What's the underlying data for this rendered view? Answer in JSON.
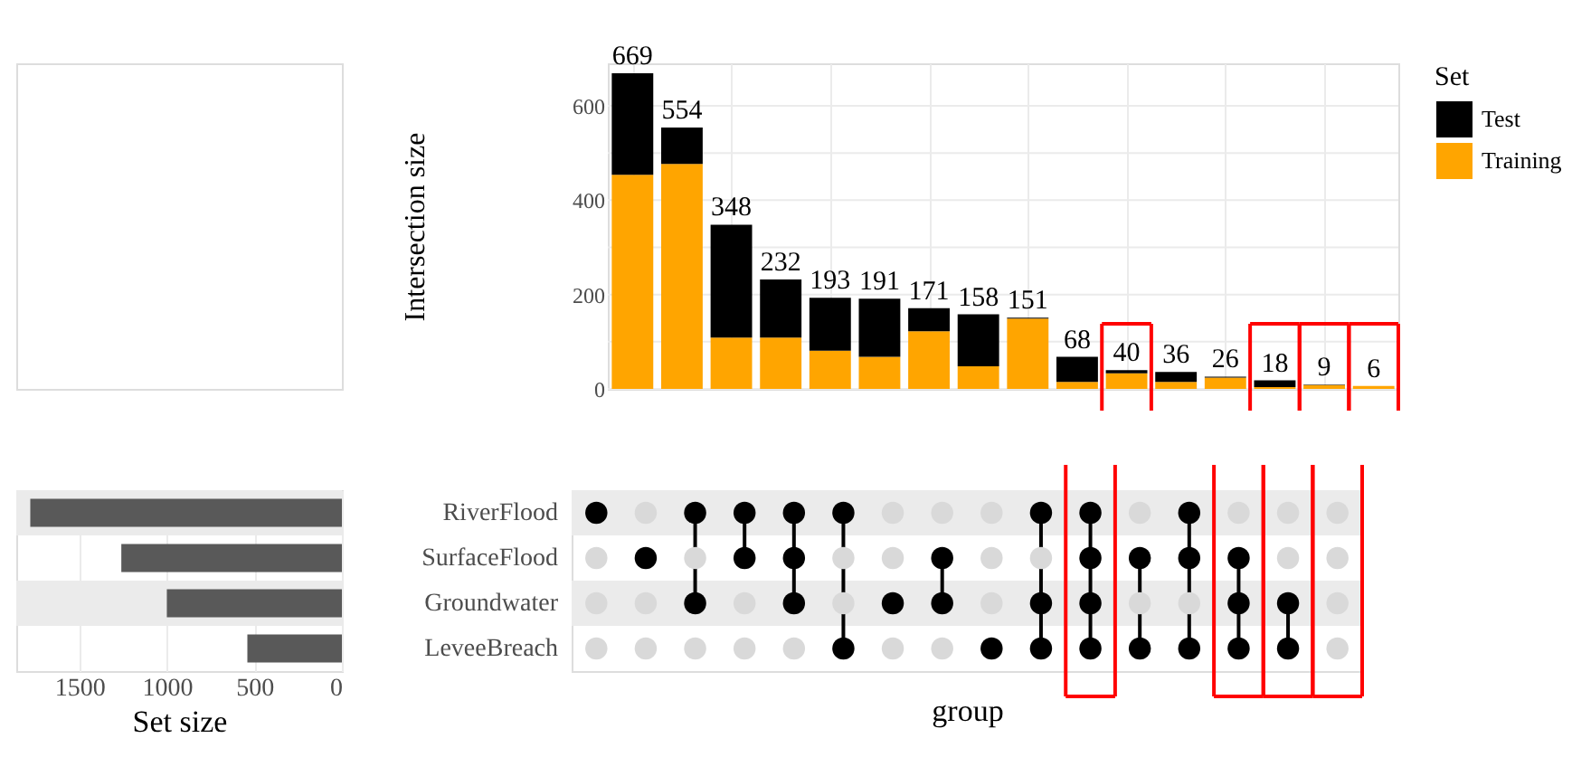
{
  "chart_data": [
    {
      "type": "bar",
      "stacked": true,
      "xlabel": "group",
      "ylabel": "Intersection size",
      "legend_title": "Set",
      "legend": "right",
      "grid": true,
      "tick_labels": "y",
      "categories": [
        null,
        null,
        null,
        null,
        null,
        null,
        null,
        null,
        null,
        null,
        null,
        null,
        null,
        null,
        null,
        null
      ],
      "ylim": [
        0,
        690
      ],
      "yticks": [
        0,
        {
          "value": 100,
          "label": null
        },
        200,
        {
          "value": 300,
          "label": null
        },
        400,
        {
          "value": 500,
          "label": null
        },
        600
      ],
      "series": [
        {
          "name": "Training",
          "color": "#ffa500",
          "values": [
            454,
            477,
            109,
            109,
            81,
            68,
            122,
            48,
            149,
            15,
            33,
            15,
            24,
            4,
            8,
            6
          ]
        },
        {
          "name": "Test",
          "color": "#000000",
          "values": [
            215,
            77,
            239,
            123,
            112,
            123,
            49,
            110,
            2,
            53,
            7,
            21,
            2,
            14,
            1,
            0
          ]
        }
      ],
      "totals": [
        "669",
        "554",
        "348",
        "232",
        "193",
        "191",
        "171",
        "158",
        "151",
        "68",
        "40",
        "36",
        "26",
        "18",
        "9",
        "6"
      ]
    },
    {
      "type": "bar",
      "orientation": "horizontal",
      "xlabel": "Set size",
      "grid": "x",
      "categories": [
        "RiverFlood",
        "SurfaceFlood",
        "Groundwater",
        "LeveeBreach"
      ],
      "values": [
        1780,
        1260,
        1000,
        540
      ],
      "color": "#595959",
      "xlim": [
        1860,
        0
      ],
      "xticks": [
        1500,
        1000,
        500,
        0
      ]
    }
  ]
}
